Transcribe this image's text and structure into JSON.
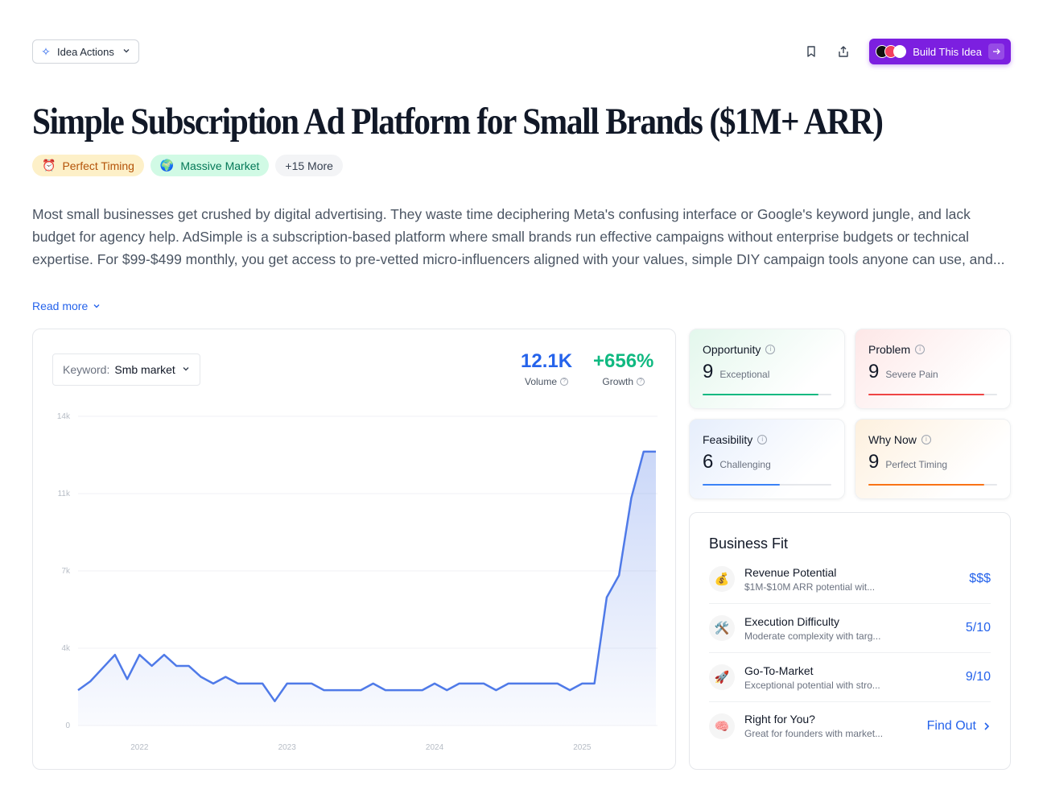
{
  "topbar": {
    "idea_actions_label": "Idea Actions",
    "build_label": "Build This Idea"
  },
  "title": "Simple Subscription Ad Platform for Small Brands ($1M+ ARR)",
  "badges": [
    {
      "icon": "⏰",
      "label": "Perfect Timing"
    },
    {
      "icon": "🌍",
      "label": "Massive Market"
    },
    {
      "label": "+15 More"
    }
  ],
  "description": "Most small businesses get crushed by digital advertising. They waste time deciphering Meta's confusing interface or Google's keyword jungle, and lack budget for agency help. AdSimple is a subscription-based platform where small brands run effective campaigns without enterprise budgets or technical expertise. For $99-$499 monthly, you get access to pre-vetted micro-influencers aligned with your values, simple DIY campaign tools anyone can use, and...",
  "read_more": "Read more",
  "keyword": {
    "label": "Keyword:",
    "value": "Smb market"
  },
  "stats": {
    "volume": {
      "value": "12.1K",
      "label": "Volume"
    },
    "growth": {
      "value": "+656%",
      "label": "Growth"
    }
  },
  "chart_data": {
    "type": "area",
    "y_ticks": [
      "0",
      "4k",
      "7k",
      "11k",
      "14k"
    ],
    "ylim": [
      0,
      14000
    ],
    "x_ticks": [
      "2022",
      "2023",
      "2024",
      "2025"
    ],
    "x_tick_index": [
      5,
      17,
      29,
      41
    ],
    "values": [
      1600,
      2000,
      2600,
      3200,
      2100,
      3200,
      2700,
      3200,
      2700,
      2700,
      2200,
      1900,
      2200,
      1900,
      1900,
      1900,
      1100,
      1900,
      1900,
      1900,
      1600,
      1600,
      1600,
      1600,
      1900,
      1600,
      1600,
      1600,
      1600,
      1900,
      1600,
      1900,
      1900,
      1900,
      1600,
      1900,
      1900,
      1900,
      1900,
      1900,
      1600,
      1900,
      1900,
      5800,
      6800,
      10300,
      12400,
      12400
    ],
    "color": "#4f7ae8"
  },
  "scores": {
    "opportunity": {
      "title": "Opportunity",
      "score": "9",
      "desc": "Exceptional",
      "fill": 0.9,
      "color": "#10b981"
    },
    "problem": {
      "title": "Problem",
      "score": "9",
      "desc": "Severe Pain",
      "fill": 0.9,
      "color": "#ef4444"
    },
    "feasibility": {
      "title": "Feasibility",
      "score": "6",
      "desc": "Challenging",
      "fill": 0.6,
      "color": "#3b82f6"
    },
    "why_now": {
      "title": "Why Now",
      "score": "9",
      "desc": "Perfect Timing",
      "fill": 0.9,
      "color": "#f97316"
    }
  },
  "business_fit": {
    "title": "Business Fit",
    "rows": [
      {
        "icon": "💰",
        "name": "Revenue Potential",
        "sub": "$1M-$10M ARR potential wit...",
        "value": "$$$"
      },
      {
        "icon": "🛠️",
        "name": "Execution Difficulty",
        "sub": "Moderate complexity with targ...",
        "value": "5/10"
      },
      {
        "icon": "🚀",
        "name": "Go-To-Market",
        "sub": "Exceptional potential with stro...",
        "value": "9/10"
      },
      {
        "icon": "🧠",
        "name": "Right for You?",
        "sub": "Great for founders with market...",
        "value": "Find Out"
      }
    ]
  }
}
